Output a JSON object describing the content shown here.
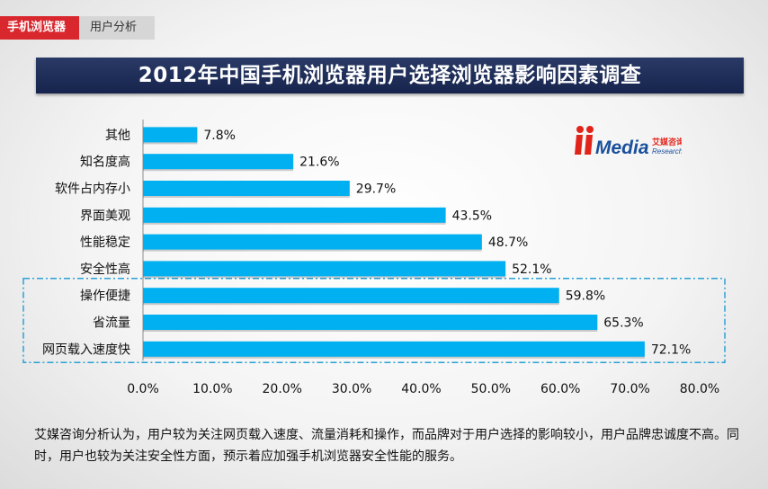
{
  "breadcrumb": {
    "section": "手机浏览器",
    "subsection": "用户分析"
  },
  "title": "2012年中国手机浏览器用户选择浏览器影响因素调查",
  "logo": {
    "brand": "iiMedia",
    "name_cn": "艾媒咨询",
    "name_en": "Research",
    "colors": {
      "red": "#e2231a",
      "blue": "#1a4f9c"
    }
  },
  "footer": {
    "text": "艾媒咨询分析认为，用户较为关注网页载入速度、流量消耗和操作，而品牌对于用户选择的影响较小，用户品牌忠诚度不高。同时，用户也较为关注安全性方面，预示着应加强手机浏览器安全性能的服务。"
  },
  "chart_data": {
    "type": "bar",
    "orientation": "horizontal",
    "categories": [
      "其他",
      "知名度高",
      "软件占内存小",
      "界面美观",
      "性能稳定",
      "安全性高",
      "操作便捷",
      "省流量",
      "网页载入速度快"
    ],
    "values": [
      7.8,
      21.6,
      29.7,
      43.5,
      48.7,
      52.1,
      59.8,
      65.3,
      72.1
    ],
    "value_labels": [
      "7.8%",
      "21.6%",
      "29.7%",
      "43.5%",
      "48.7%",
      "52.1%",
      "59.8%",
      "65.3%",
      "72.1%"
    ],
    "xlim": [
      0,
      80
    ],
    "x_ticks": [
      "0.0%",
      "10.0%",
      "20.0%",
      "30.0%",
      "40.0%",
      "50.0%",
      "60.0%",
      "70.0%",
      "80.0%"
    ],
    "highlighted_categories": [
      "操作便捷",
      "省流量",
      "网页载入速度快"
    ],
    "grid": false,
    "colors": {
      "bar": "#00b0f0",
      "highlight_box": "#2aa1d6"
    }
  }
}
